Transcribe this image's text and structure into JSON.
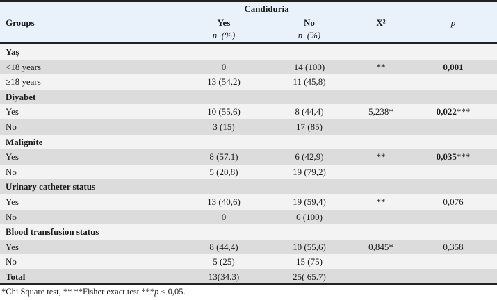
{
  "header": {
    "spanning": "Candiduria",
    "groups": "Groups",
    "yes": "Yes",
    "no": "No",
    "chi": "X²",
    "p": "p",
    "n_pct_yes": "n  (%)",
    "n_pct_no": "n  (%)"
  },
  "rows": [
    {
      "type": "section",
      "label": "Yaş"
    },
    {
      "label": "<18 years",
      "yes": "0",
      "no": "14 (100)",
      "chi": "**",
      "p": "0,001",
      "p_bold": true,
      "p_suffix": ""
    },
    {
      "label": "≥18 years",
      "yes": "13 (54,2)",
      "no": "11 (45,8)",
      "chi": "",
      "p": "",
      "p_suffix": ""
    },
    {
      "type": "section",
      "label": "Diyabet"
    },
    {
      "label": "Yes",
      "yes": "10 (55,6)",
      "no": "8 (44,4)",
      "chi": "5,238*",
      "p": "0,022",
      "p_bold": true,
      "p_suffix": "***"
    },
    {
      "label": "No",
      "yes": "3 (15)",
      "no": "17 (85)",
      "chi": "",
      "p": "",
      "p_suffix": ""
    },
    {
      "type": "section",
      "label": "Malignite"
    },
    {
      "label": "Yes",
      "yes": "8 (57,1)",
      "no": "6 (42,9)",
      "chi": "**",
      "p": "0,035",
      "p_bold": true,
      "p_suffix": "***"
    },
    {
      "label": "No",
      "yes": "5 (20,8)",
      "no": "19 (79,2)",
      "chi": "",
      "p": "",
      "p_suffix": ""
    },
    {
      "type": "section",
      "label": "Urinary catheter status"
    },
    {
      "label": "Yes",
      "yes": "13 (40,6)",
      "no": "19 (59,4)",
      "chi": "**",
      "p": "0,076",
      "p_suffix": ""
    },
    {
      "label": "No",
      "yes": "0",
      "no": "6 (100)",
      "chi": "",
      "p": "",
      "p_suffix": ""
    },
    {
      "type": "section",
      "label": "Blood transfusion status"
    },
    {
      "label": "Yes",
      "yes": "8 (44,4)",
      "no": "10 (55,6)",
      "chi": "0,845*",
      "p": "0,358",
      "p_suffix": ""
    },
    {
      "label": "No",
      "yes": "5 (25)",
      "no": "15 (75)",
      "chi": "",
      "p": "",
      "p_suffix": ""
    },
    {
      "type": "total",
      "label": "Total",
      "yes": "13(34.3)",
      "no": "25( 65.7)",
      "chi": "",
      "p": "",
      "p_suffix": ""
    }
  ],
  "footnote_pre": "*Chi Square test, ** **Fisher exact test ***",
  "footnote_p": "p",
  "footnote_post": " < 0,05."
}
